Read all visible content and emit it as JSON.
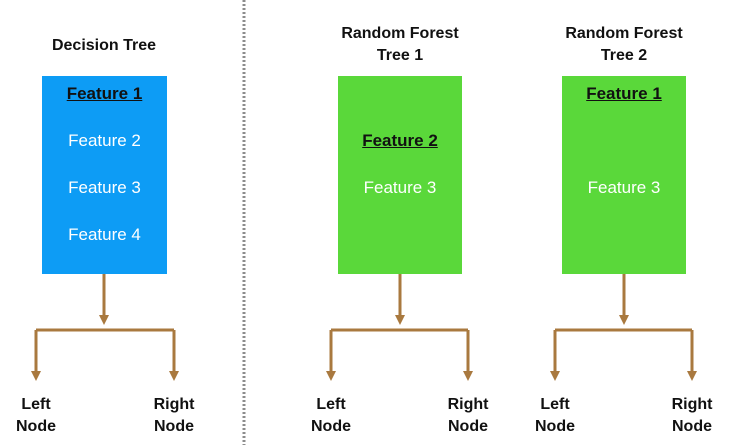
{
  "colors": {
    "decision_box": "#0d9cf5",
    "forest_box": "#5ad83a",
    "arrow": "#a9793f",
    "divider": "#8c8c8c"
  },
  "trees": [
    {
      "title": "Decision Tree",
      "features": [
        {
          "label": "Feature 1",
          "selected": true
        },
        {
          "label": "Feature 2",
          "selected": false
        },
        {
          "label": "Feature 3",
          "selected": false
        },
        {
          "label": "Feature 4",
          "selected": false
        }
      ],
      "left_node": [
        "Left",
        "Node"
      ],
      "right_node": [
        "Right",
        "Node"
      ]
    },
    {
      "title": "Random Forest\nTree 1",
      "features": [
        {
          "label": "Feature 2",
          "selected": true
        },
        {
          "label": "Feature 3",
          "selected": false
        }
      ],
      "left_node": [
        "Left",
        "Node"
      ],
      "right_node": [
        "Right",
        "Node"
      ]
    },
    {
      "title": "Random Forest\nTree 2",
      "features": [
        {
          "label": "Feature 1",
          "selected": true
        },
        {
          "label": "Feature 3",
          "selected": false
        }
      ],
      "left_node": [
        "Left",
        "Node"
      ],
      "right_node": [
        "Right",
        "Node"
      ]
    }
  ]
}
